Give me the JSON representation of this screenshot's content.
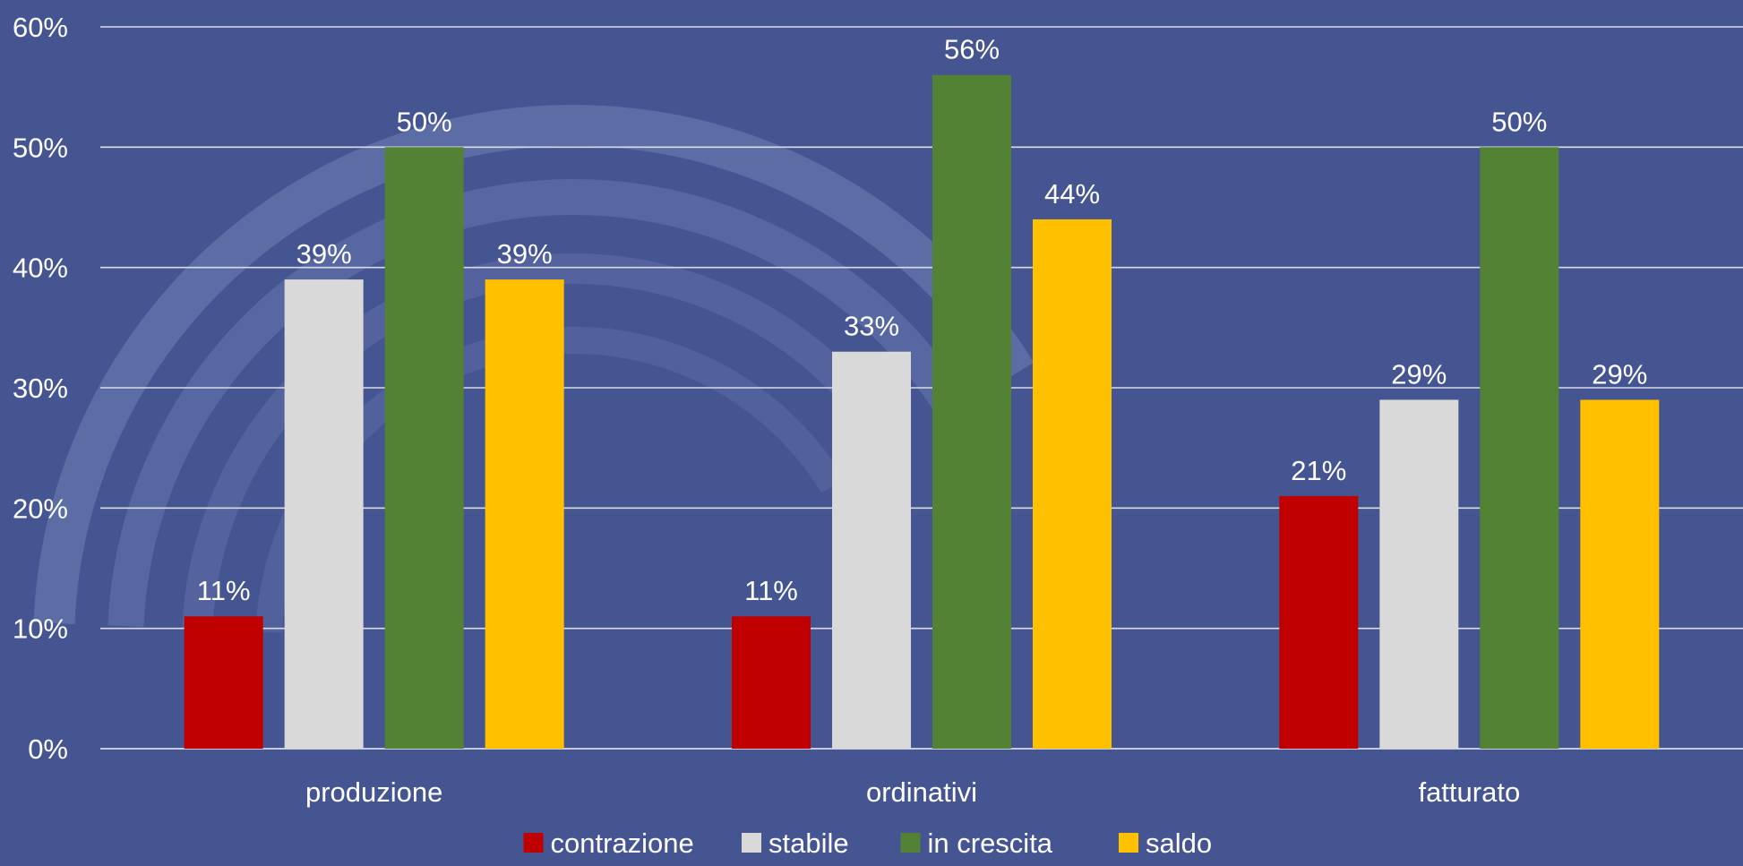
{
  "chart_data": {
    "type": "bar",
    "title": "",
    "xlabel": "",
    "ylabel": "",
    "ylim": [
      0,
      60
    ],
    "ytick_step": 10,
    "ytick_suffix": "%",
    "grid": true,
    "legend_position": "bottom",
    "categories": [
      "produzione",
      "ordinativi",
      "fatturato"
    ],
    "series": [
      {
        "name": "contrazione",
        "color": "#C00000",
        "values": [
          11,
          11,
          21
        ]
      },
      {
        "name": "stabile",
        "color": "#D9D9D9",
        "values": [
          39,
          33,
          29
        ]
      },
      {
        "name": "in crescita",
        "color": "#548235",
        "values": [
          50,
          56,
          50
        ]
      },
      {
        "name": "saldo",
        "color": "#FFC000",
        "values": [
          39,
          44,
          29
        ]
      }
    ],
    "data_labels": [
      [
        "11%",
        "11%",
        "21%"
      ],
      [
        "39%",
        "33%",
        "29%"
      ],
      [
        "50%",
        "56%",
        "50%"
      ],
      [
        "39%",
        "44%",
        "29%"
      ]
    ]
  },
  "colors": {
    "background": "#455592",
    "gridline": "#d9dbe6",
    "text": "#ffffff",
    "swirl": "#9ba8d4"
  }
}
